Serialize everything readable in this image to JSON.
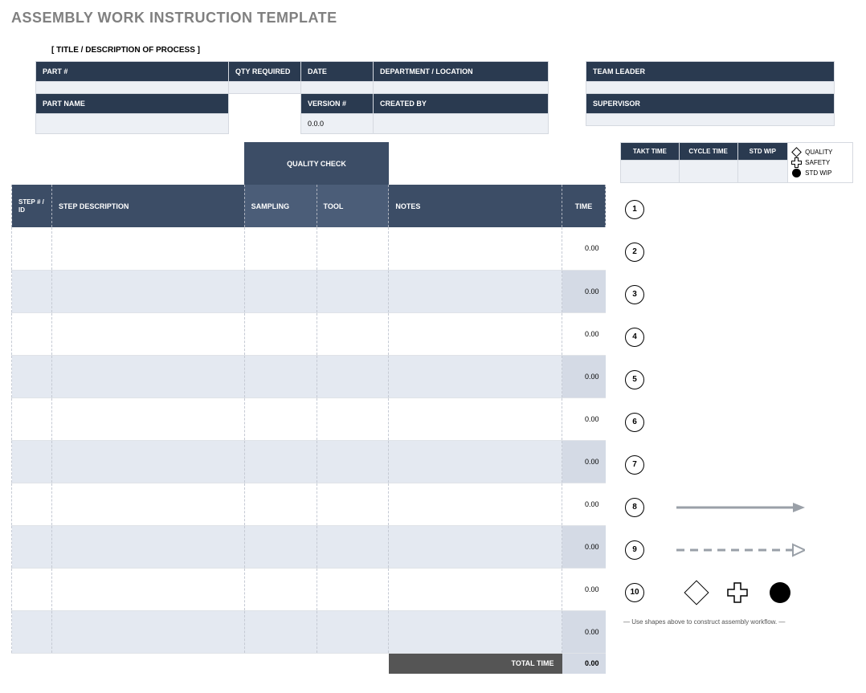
{
  "page": {
    "title": "ASSEMBLY WORK INSTRUCTION TEMPLATE",
    "subtitle": "[ TITLE / DESCRIPTION OF PROCESS ]"
  },
  "colors": {
    "header_dark": "#2a3a50",
    "header_med": "#4b5d78",
    "header_med2": "#3c4d66",
    "row_alt": "#e4e9f1",
    "row_light": "#edf0f5",
    "time_bg": "#e8ecf2",
    "total_bg": "#555555",
    "title_gray": "#808080",
    "arrow_gray": "#9aa0a8"
  },
  "info": {
    "part_num_label": "PART #",
    "part_num": "",
    "qty_required_label": "QTY REQUIRED",
    "qty_required": "",
    "date_label": "DATE",
    "date": "",
    "dept_label": "DEPARTMENT / LOCATION",
    "dept": "",
    "part_name_label": "PART NAME",
    "part_name": "",
    "version_label": "VERSION #",
    "version": "0.0.0",
    "created_by_label": "CREATED BY",
    "created_by": "",
    "team_leader_label": "TEAM LEADER",
    "team_leader": "",
    "supervisor_label": "SUPERVISOR",
    "supervisor": ""
  },
  "steps_header": {
    "quality_check": "QUALITY    CHECK",
    "step_id": "STEP # / ID",
    "step_desc": "STEP DESCRIPTION",
    "sampling": "SAMPLING",
    "tool": "TOOL",
    "notes": "NOTES",
    "time": "TIME"
  },
  "col_widths": {
    "step_id": 50,
    "step_desc": 240,
    "sampling": 90,
    "tool": 90,
    "notes": 216,
    "time": 54
  },
  "steps": [
    {
      "id": "",
      "desc": "",
      "sampling": "",
      "tool": "",
      "notes": "",
      "time": "0.00"
    },
    {
      "id": "",
      "desc": "",
      "sampling": "",
      "tool": "",
      "notes": "",
      "time": "0.00"
    },
    {
      "id": "",
      "desc": "",
      "sampling": "",
      "tool": "",
      "notes": "",
      "time": "0.00"
    },
    {
      "id": "",
      "desc": "",
      "sampling": "",
      "tool": "",
      "notes": "",
      "time": "0.00"
    },
    {
      "id": "",
      "desc": "",
      "sampling": "",
      "tool": "",
      "notes": "",
      "time": "0.00"
    },
    {
      "id": "",
      "desc": "",
      "sampling": "",
      "tool": "",
      "notes": "",
      "time": "0.00"
    },
    {
      "id": "",
      "desc": "",
      "sampling": "",
      "tool": "",
      "notes": "",
      "time": "0.00"
    },
    {
      "id": "",
      "desc": "",
      "sampling": "",
      "tool": "",
      "notes": "",
      "time": "0.00"
    },
    {
      "id": "",
      "desc": "",
      "sampling": "",
      "tool": "",
      "notes": "",
      "time": "0.00"
    },
    {
      "id": "",
      "desc": "",
      "sampling": "",
      "tool": "",
      "notes": "",
      "time": "0.00"
    }
  ],
  "total": {
    "label": "TOTAL TIME",
    "value": "0.00"
  },
  "metrics": {
    "takt_label": "TAKT TIME",
    "cycle_label": "CYCLE TIME",
    "std_wip_label": "STD WIP",
    "takt": "",
    "cycle": "",
    "std_wip": ""
  },
  "legend": {
    "quality": "QUALITY",
    "safety": "SAFETY",
    "std_wip": "STD WIP"
  },
  "workflow": {
    "numbers": [
      "1",
      "2",
      "3",
      "4",
      "5",
      "6",
      "7",
      "8",
      "9",
      "10"
    ],
    "note": "—  Use shapes above to construct assembly workflow.  —"
  }
}
